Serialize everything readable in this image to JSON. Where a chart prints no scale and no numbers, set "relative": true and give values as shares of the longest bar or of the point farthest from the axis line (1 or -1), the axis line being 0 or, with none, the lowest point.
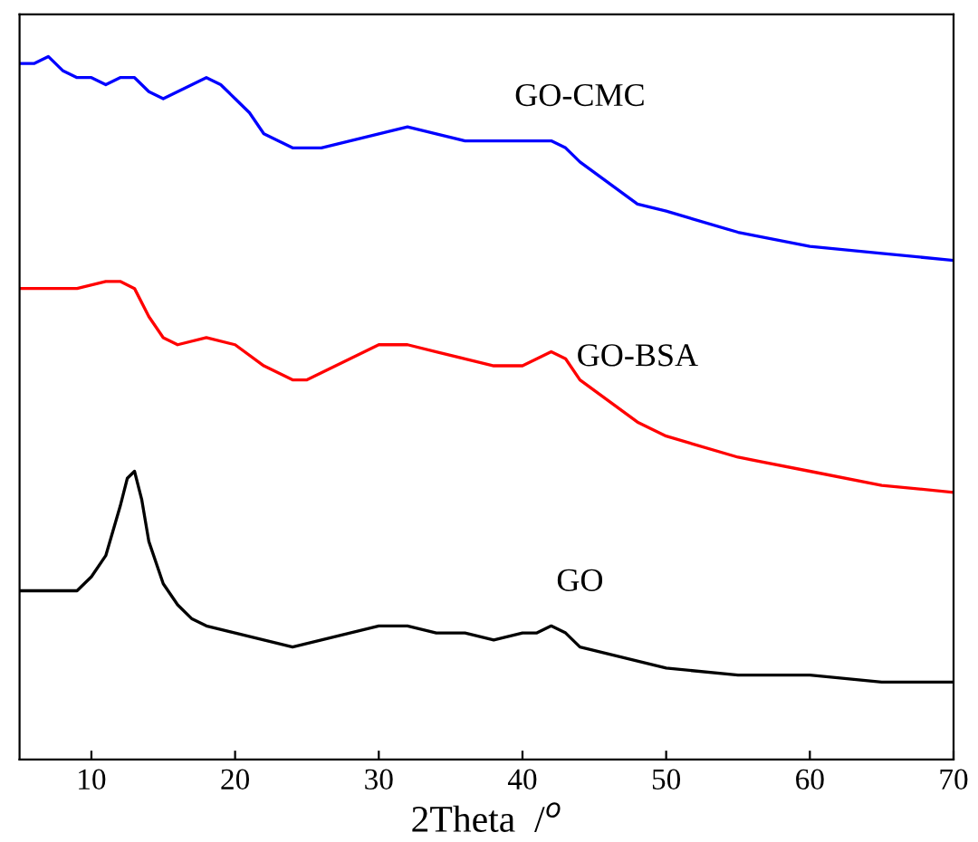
{
  "chart_data": {
    "type": "line",
    "relative": true,
    "xlabel": "2Theta  /$^{o}$",
    "xlim": [
      5,
      70
    ],
    "xticks": [
      10,
      20,
      30,
      40,
      50,
      60,
      70
    ],
    "tick_labels": "x",
    "grid": false,
    "legend": false,
    "line_style": "solid",
    "marker": "none",
    "series": [
      {
        "name": "GO-CMC",
        "color": "#0000ff",
        "x": [
          5,
          6,
          7,
          8,
          9,
          10,
          11,
          12,
          13,
          14,
          15,
          16,
          17,
          18,
          19,
          20,
          21,
          22,
          23,
          24,
          26,
          28,
          30,
          32,
          34,
          36,
          38,
          40,
          41,
          42,
          43,
          44,
          46,
          48,
          50,
          55,
          60,
          65,
          70
        ],
        "values": [
          0.99,
          0.99,
          1,
          0.98,
          0.97,
          0.97,
          0.96,
          0.97,
          0.97,
          0.95,
          0.94,
          0.95,
          0.96,
          0.97,
          0.96,
          0.94,
          0.92,
          0.89,
          0.88,
          0.87,
          0.87,
          0.88,
          0.89,
          0.9,
          0.89,
          0.88,
          0.88,
          0.88,
          0.88,
          0.88,
          0.87,
          0.85,
          0.82,
          0.79,
          0.78,
          0.75,
          0.73,
          0.72,
          0.71
        ]
      },
      {
        "name": "GO-BSA",
        "color": "#ff0000",
        "x": [
          5,
          7,
          9,
          11,
          12,
          13,
          14,
          15,
          16,
          18,
          20,
          22,
          24,
          25,
          26,
          28,
          30,
          32,
          34,
          36,
          38,
          40,
          41,
          42,
          43,
          44,
          46,
          48,
          50,
          55,
          60,
          65,
          70
        ],
        "values": [
          0.67,
          0.67,
          0.67,
          0.68,
          0.68,
          0.67,
          0.63,
          0.6,
          0.59,
          0.6,
          0.59,
          0.56,
          0.54,
          0.54,
          0.55,
          0.57,
          0.59,
          0.59,
          0.58,
          0.57,
          0.56,
          0.56,
          0.57,
          0.58,
          0.57,
          0.54,
          0.51,
          0.48,
          0.46,
          0.43,
          0.41,
          0.39,
          0.38
        ]
      },
      {
        "name": "GO",
        "color": "#000000",
        "x": [
          5,
          8,
          9,
          10,
          11,
          12,
          12.5,
          13,
          13.5,
          14,
          15,
          16,
          17,
          18,
          20,
          22,
          24,
          26,
          28,
          30,
          32,
          34,
          36,
          38,
          40,
          41,
          42,
          43,
          44,
          46,
          50,
          55,
          60,
          65,
          70
        ],
        "values": [
          0.24,
          0.24,
          0.24,
          0.26,
          0.29,
          0.36,
          0.4,
          0.41,
          0.37,
          0.31,
          0.25,
          0.22,
          0.2,
          0.19,
          0.18,
          0.17,
          0.16,
          0.17,
          0.18,
          0.19,
          0.19,
          0.18,
          0.18,
          0.17,
          0.18,
          0.18,
          0.19,
          0.18,
          0.16,
          0.15,
          0.13,
          0.12,
          0.12,
          0.11,
          0.11
        ]
      }
    ]
  }
}
